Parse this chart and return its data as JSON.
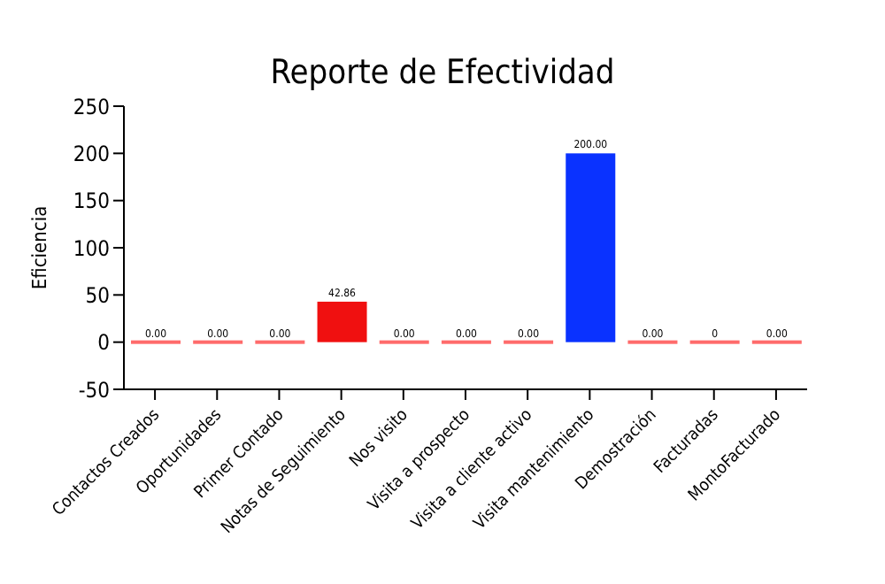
{
  "chart_data": {
    "type": "bar",
    "title": "Reporte de Efectividad",
    "ylabel": "Eficiencia",
    "categories": [
      "Contactos Creados",
      "Oportunidades",
      "Primer Contado",
      "Notas de Seguimiento",
      "Nos visito",
      "Visita a prospecto",
      "Visita a cliente activo",
      "Visita mantenimiento",
      "Demostración",
      "Facturadas",
      "MontoFacturado"
    ],
    "values": [
      0,
      0,
      0,
      42.86,
      0,
      0,
      0,
      200,
      0,
      0,
      0
    ],
    "colors": [
      "#ff6b6b",
      "#ff6b6b",
      "#ff6b6b",
      "#f01010",
      "#ff6b6b",
      "#ff6b6b",
      "#ff6b6b",
      "#0a32ff",
      "#ff6b6b",
      "#ff6b6b",
      "#ff6b6b"
    ],
    "value_labels": [
      "0.00",
      "0.00",
      "0.00",
      "42.86",
      "0.00",
      "0.00",
      "0.00",
      "200.00",
      "0.00",
      "0",
      "0.00"
    ],
    "ylim": [
      -50,
      250
    ],
    "yticks": [
      -50,
      0,
      50,
      100,
      150,
      200,
      250
    ]
  }
}
